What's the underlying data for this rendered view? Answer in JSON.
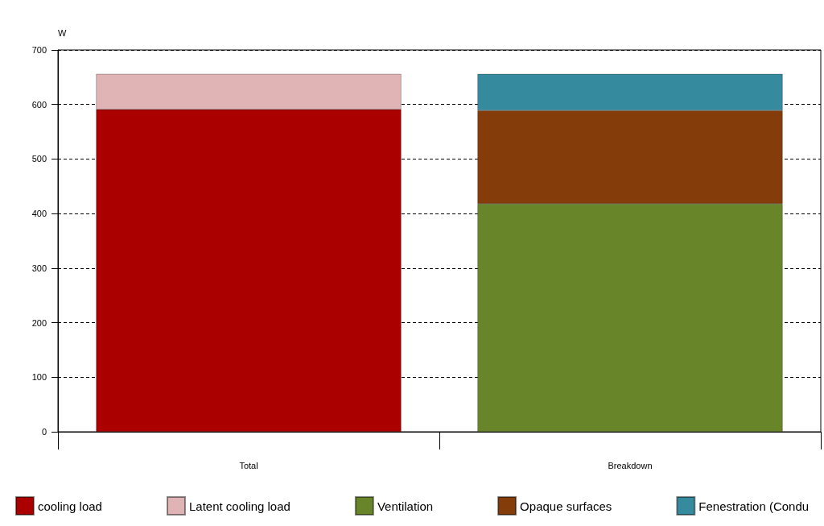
{
  "chart_data": {
    "type": "bar",
    "stacked": true,
    "ylabel": "W",
    "categories": [
      "Total",
      "Breakdown"
    ],
    "series": [
      {
        "name": "cooling load",
        "color": "#aa0000",
        "values": [
          591,
          null
        ]
      },
      {
        "name": "Latent cooling load",
        "color": "#e0b4b4",
        "values": [
          65,
          null
        ]
      },
      {
        "name": "Ventilation",
        "color": "#688629",
        "values": [
          null,
          418
        ]
      },
      {
        "name": "Opaque surfaces",
        "color": "#843c0a",
        "values": [
          null,
          171
        ]
      },
      {
        "name": "Fenestration (Condu",
        "color": "#368a9e",
        "values": [
          null,
          67
        ]
      }
    ],
    "ylim": [
      0,
      700
    ],
    "yticks": [
      0,
      100,
      200,
      300,
      400,
      500,
      600,
      700
    ],
    "grid": "y",
    "legend": "bottom"
  }
}
